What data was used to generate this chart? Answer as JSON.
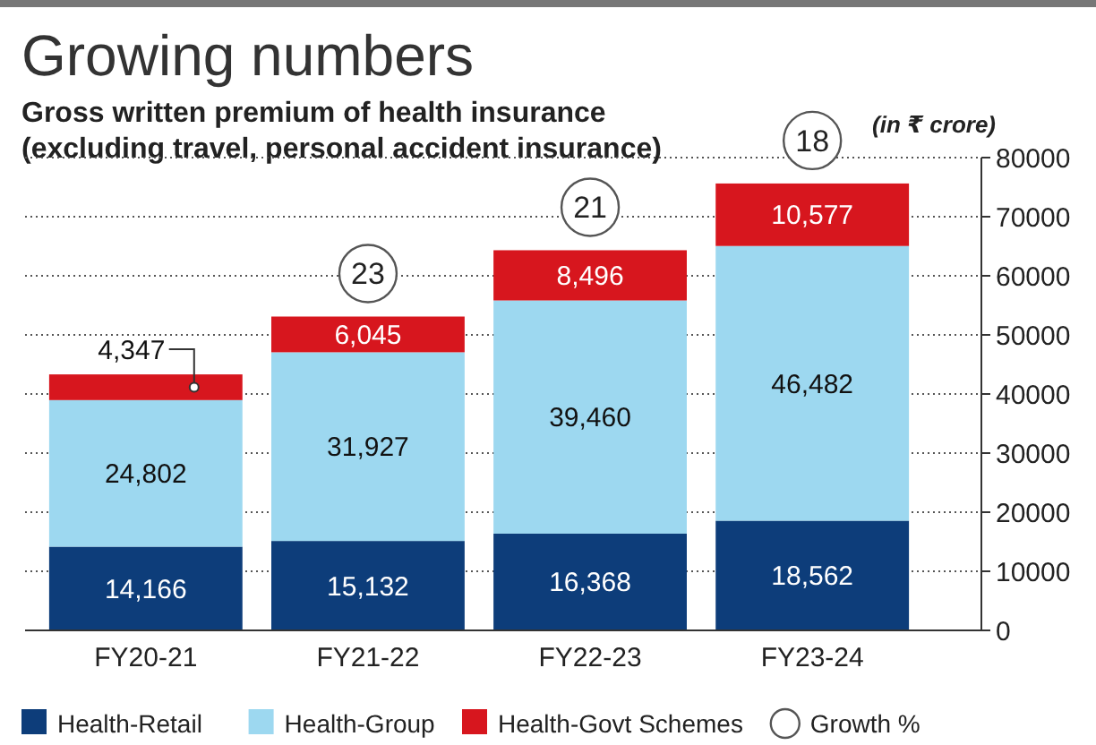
{
  "chart_data": {
    "type": "bar",
    "title": "Growing numbers",
    "subtitle": "Gross written premium of health insurance\n(excluding travel, personal accident insurance)",
    "ylabel": "(in ₹ crore)",
    "categories": [
      "FY20-21",
      "FY21-22",
      "FY22-23",
      "FY23-24"
    ],
    "stacked": true,
    "series": [
      {
        "name": "Health-Retail",
        "color": "#0d3d7a",
        "values": [
          14166,
          15132,
          16368,
          18562
        ],
        "value_labels": [
          "14,166",
          "15,132",
          "16,368",
          "18,562"
        ]
      },
      {
        "name": "Health-Group",
        "color": "#9dd8f0",
        "values": [
          24802,
          31927,
          39460,
          46482
        ],
        "value_labels": [
          "24,802",
          "31,927",
          "39,460",
          "46,482"
        ]
      },
      {
        "name": "Health-Govt Schemes",
        "color": "#d7161e",
        "values": [
          4347,
          6045,
          8496,
          10577
        ],
        "value_labels": [
          "4,347",
          "6,045",
          "8,496",
          "10,577"
        ]
      }
    ],
    "annotations": [
      {
        "text": "23",
        "x": "FY21-22"
      },
      {
        "text": "21",
        "x": "FY22-23"
      },
      {
        "text": "18",
        "x": "FY23-24"
      },
      "Growth %"
    ],
    "ylim": [
      0,
      80000
    ],
    "yticks": [
      0,
      10000,
      20000,
      30000,
      40000,
      50000,
      60000,
      70000,
      80000
    ],
    "grid": "y",
    "legend": "bottom"
  }
}
